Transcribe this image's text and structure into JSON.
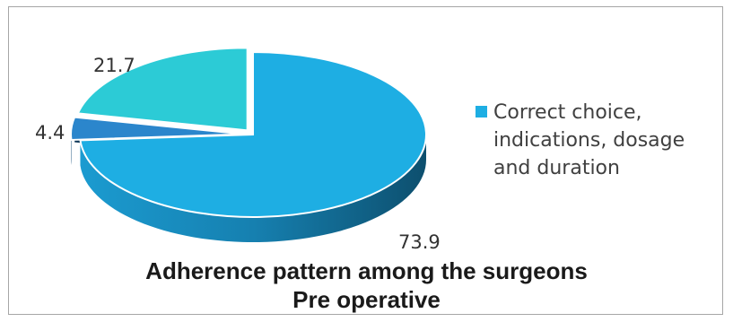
{
  "chart_data": {
    "type": "pie",
    "title": "Adherence pattern among the surgeons",
    "subtitle": "Pre operative",
    "slices": [
      {
        "value": 73.9,
        "label": "73.9",
        "color": "#1eaee3",
        "exploded": false
      },
      {
        "value": 4.4,
        "label": "4.4",
        "color": "#2b86cc",
        "exploded": true
      },
      {
        "value": 21.7,
        "label": "21.7",
        "color": "#2ccbd6",
        "exploded": true
      }
    ],
    "legend": [
      {
        "label": "Correct choice, indications, dosage and duration",
        "color": "#1eaee3"
      }
    ],
    "legend_position": "right"
  }
}
